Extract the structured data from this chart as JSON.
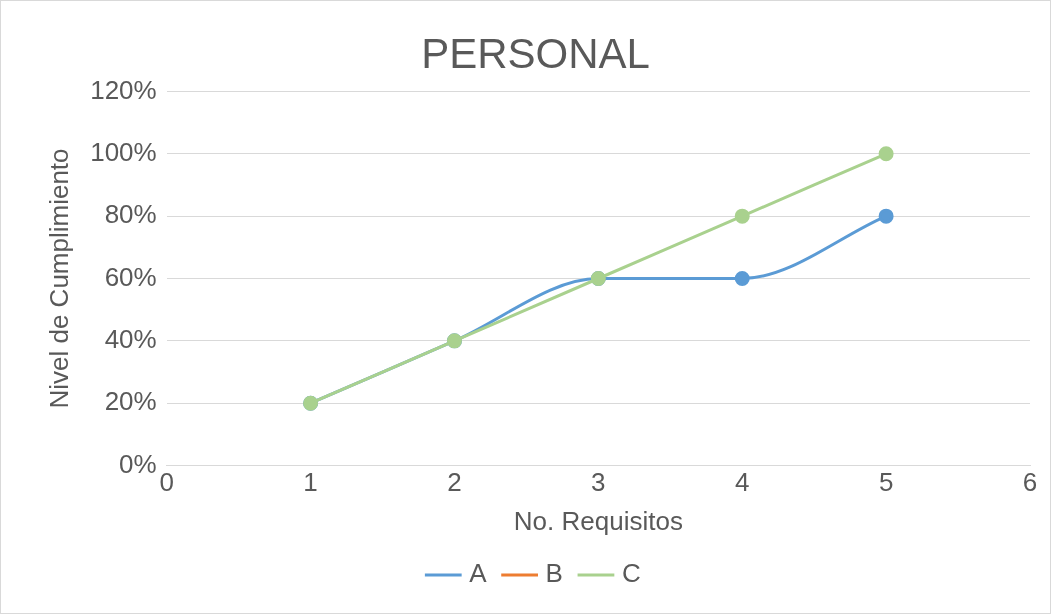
{
  "chart_data": {
    "type": "line",
    "title": "PERSONAL",
    "xlabel": "No. Requisitos",
    "ylabel": "Nivel de Cumplimiento",
    "x": [
      1,
      2,
      3,
      4,
      5
    ],
    "series": [
      {
        "name": "A",
        "color": "#5b9bd5",
        "values": [
          20,
          40,
          60,
          60,
          80
        ]
      },
      {
        "name": "B",
        "color": "#ed7d31",
        "values": [
          null,
          null,
          null,
          null,
          null
        ]
      },
      {
        "name": "C",
        "color": "#a9d18e",
        "values": [
          20,
          40,
          60,
          80,
          100
        ]
      }
    ],
    "xlim": [
      0,
      6
    ],
    "xticks": [
      0,
      1,
      2,
      3,
      4,
      5,
      6
    ],
    "ylim": [
      0,
      120
    ],
    "yticks": [
      {
        "value": 0,
        "label": "0%"
      },
      {
        "value": 20,
        "label": "20%"
      },
      {
        "value": 40,
        "label": "40%"
      },
      {
        "value": 60,
        "label": "60%"
      },
      {
        "value": 80,
        "label": "80%"
      },
      {
        "value": 100,
        "label": "100%"
      },
      {
        "value": 120,
        "label": "120%"
      }
    ],
    "grid": "y",
    "legend": "bottom",
    "marker": "circle",
    "line_style": "solid"
  }
}
